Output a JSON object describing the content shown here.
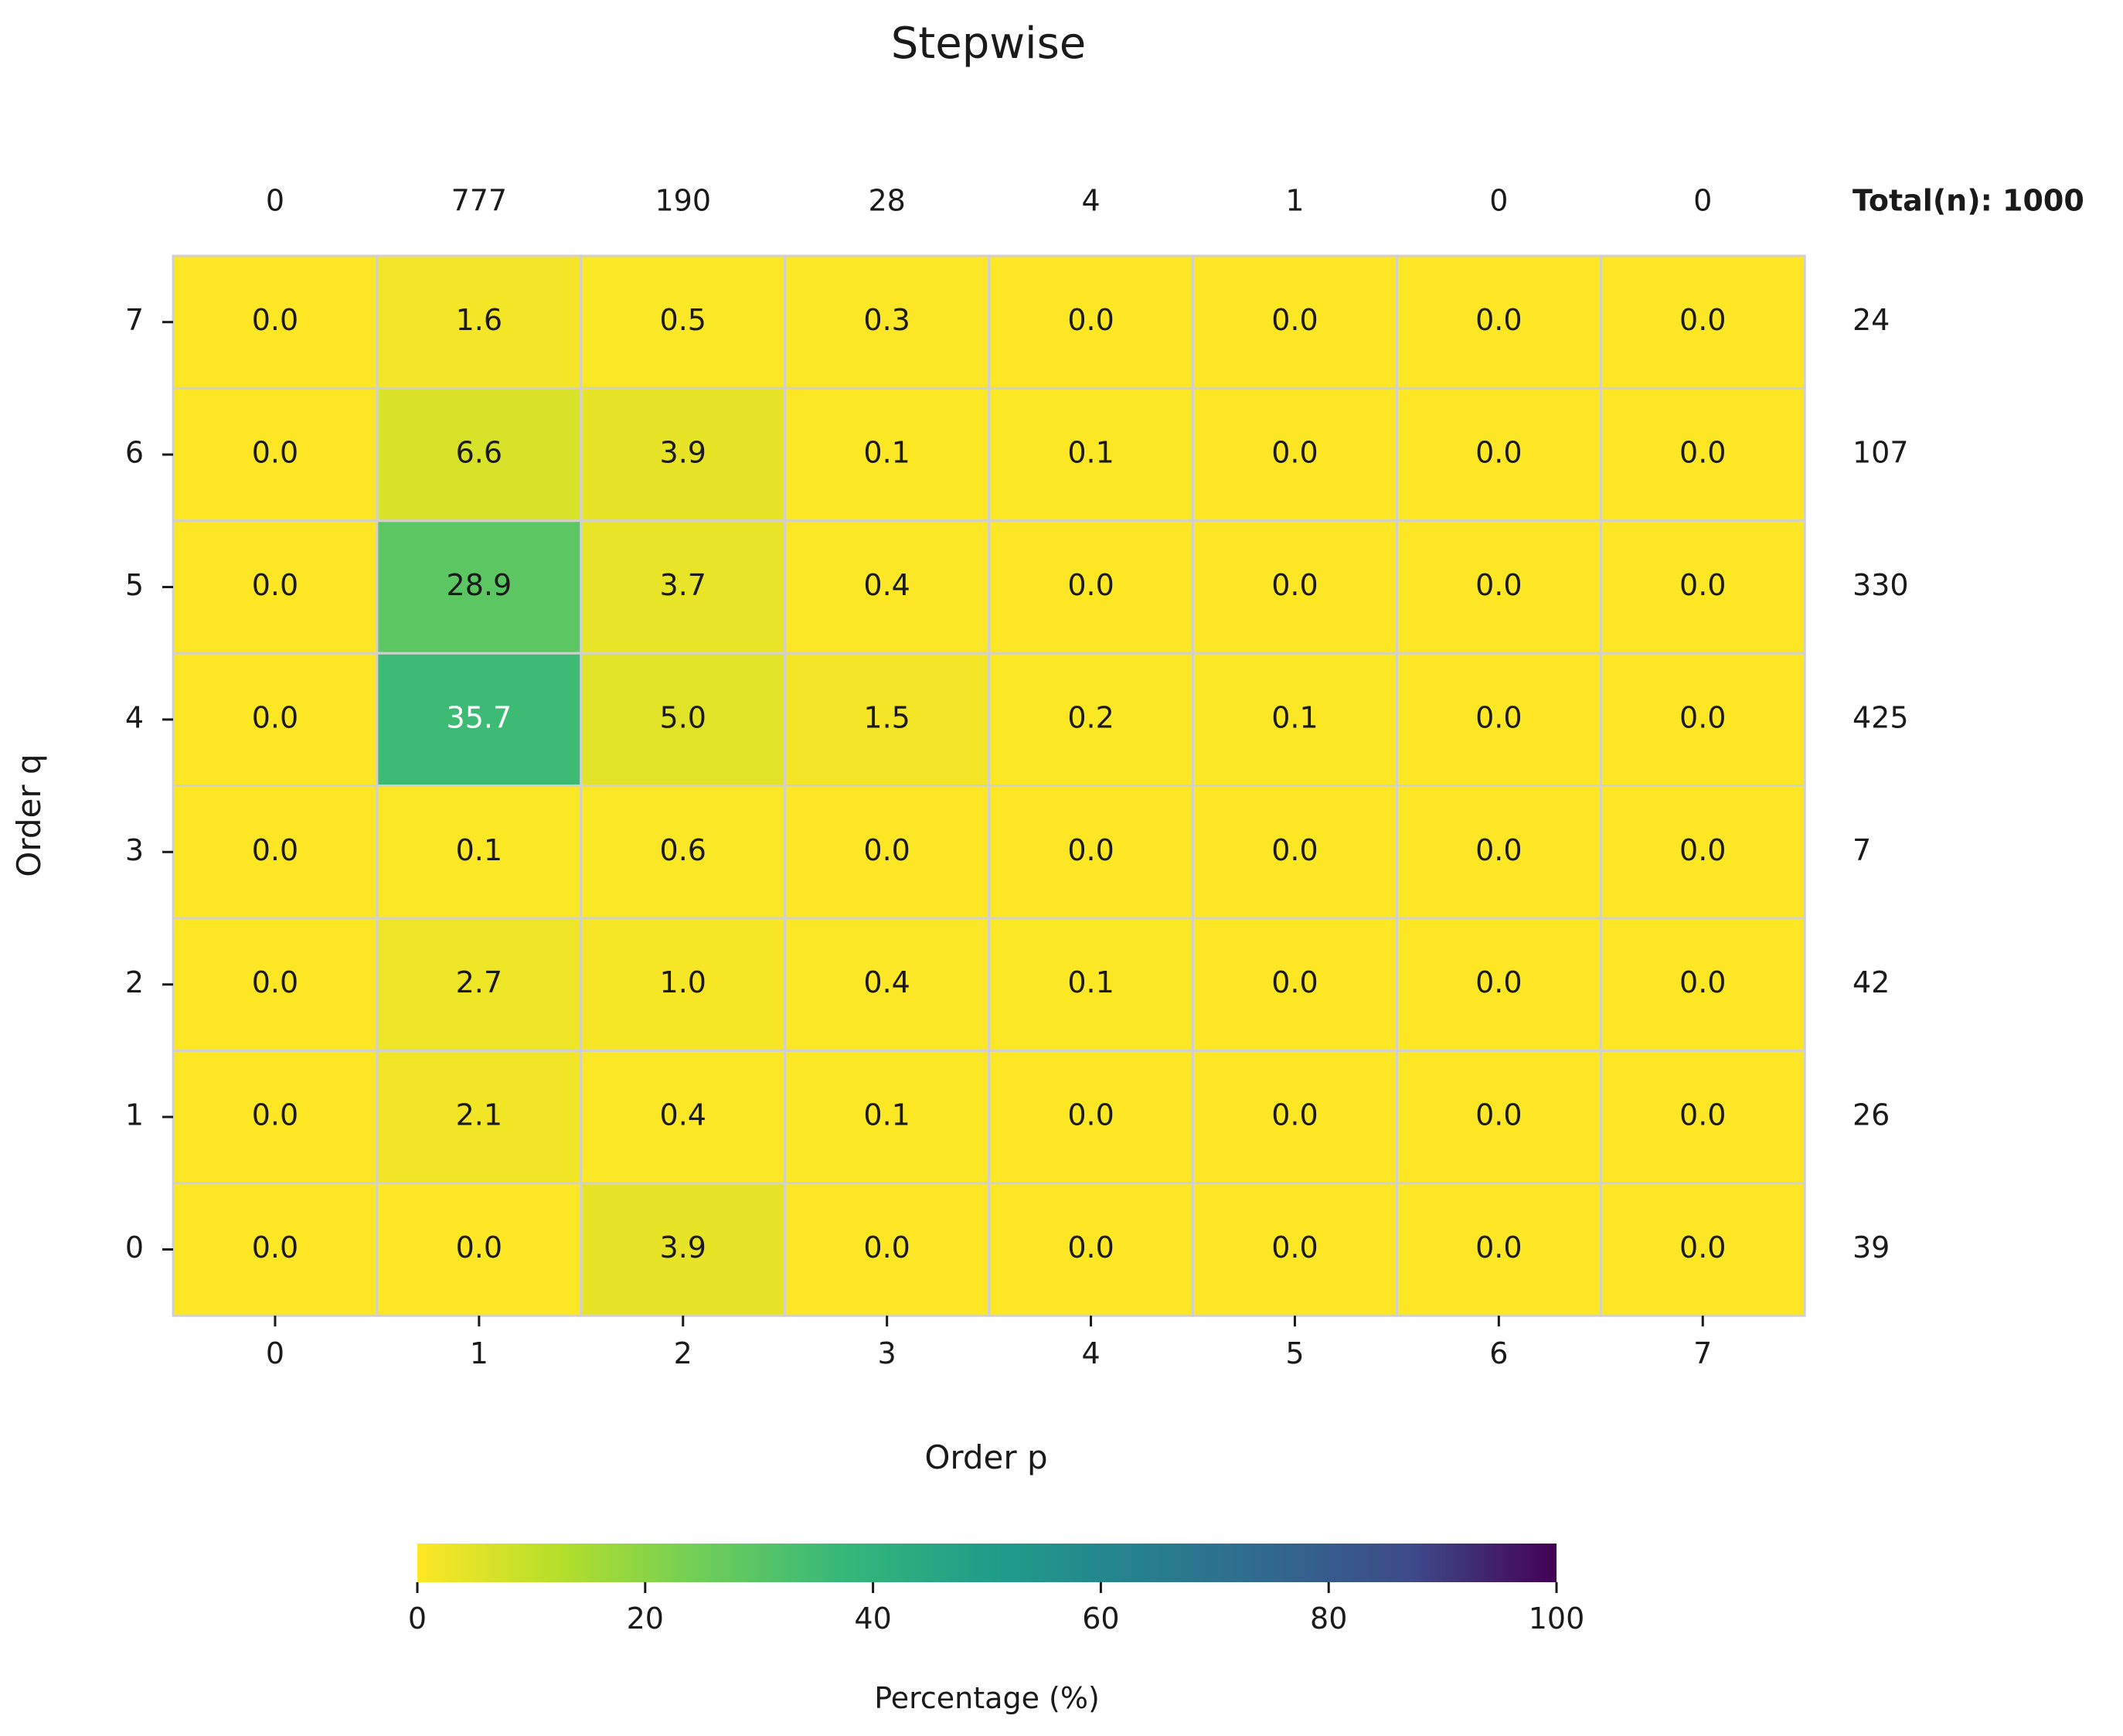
{
  "chart_data": {
    "type": "heatmap",
    "title": "Stepwise",
    "xlabel": "Order p",
    "ylabel": "Order q",
    "x": [
      0,
      1,
      2,
      3,
      4,
      5,
      6,
      7
    ],
    "y": [
      7,
      6,
      5,
      4,
      3,
      2,
      1,
      0
    ],
    "values": [
      [
        0.0,
        1.6,
        0.5,
        0.3,
        0.0,
        0.0,
        0.0,
        0.0
      ],
      [
        0.0,
        6.6,
        3.9,
        0.1,
        0.1,
        0.0,
        0.0,
        0.0
      ],
      [
        0.0,
        28.9,
        3.7,
        0.4,
        0.0,
        0.0,
        0.0,
        0.0
      ],
      [
        0.0,
        35.7,
        5.0,
        1.5,
        0.2,
        0.1,
        0.0,
        0.0
      ],
      [
        0.0,
        0.1,
        0.6,
        0.0,
        0.0,
        0.0,
        0.0,
        0.0
      ],
      [
        0.0,
        2.7,
        1.0,
        0.4,
        0.1,
        0.0,
        0.0,
        0.0
      ],
      [
        0.0,
        2.1,
        0.4,
        0.1,
        0.0,
        0.0,
        0.0,
        0.0
      ],
      [
        0.0,
        0.0,
        3.9,
        0.0,
        0.0,
        0.0,
        0.0,
        0.0
      ]
    ],
    "column_totals": [
      0,
      777,
      190,
      28,
      4,
      1,
      0,
      0
    ],
    "row_totals": [
      24,
      107,
      330,
      425,
      7,
      42,
      26,
      39
    ],
    "total_label": "Total(n): 1000",
    "colorbar": {
      "label": "Percentage (%)",
      "range": [
        0,
        100
      ],
      "ticks": [
        0,
        20,
        40,
        60,
        80,
        100
      ],
      "colormap": "viridis_r"
    },
    "grid_color": "#d0d0d0"
  }
}
